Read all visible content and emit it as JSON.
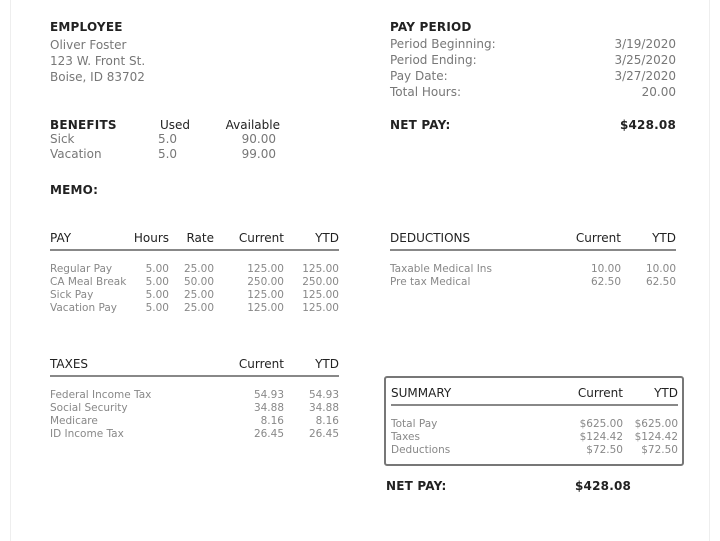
{
  "employee": {
    "title": "EMPLOYEE",
    "name": "Oliver Foster",
    "address1": "123 W. Front St.",
    "address2": "Boise, ID 83702"
  },
  "pay_period": {
    "title": "PAY PERIOD",
    "rows": [
      {
        "label": "Period Beginning:",
        "value": "3/19/2020"
      },
      {
        "label": "Period Ending:",
        "value": "3/25/2020"
      },
      {
        "label": "Pay Date:",
        "value": "3/27/2020"
      },
      {
        "label": "Total Hours:",
        "value": "20.00"
      }
    ]
  },
  "benefits": {
    "headers": [
      "BENEFITS",
      "Used",
      "Available"
    ],
    "rows": [
      [
        "Sick",
        "5.0",
        "90.00"
      ],
      [
        "Vacation",
        "5.0",
        "99.00"
      ]
    ]
  },
  "net_pay_top": {
    "label": "NET PAY:",
    "value": "$428.08"
  },
  "memo": {
    "label": "MEMO:"
  },
  "pay": {
    "headers": [
      "PAY",
      "Hours",
      "Rate",
      "Current",
      "YTD"
    ],
    "rows": [
      [
        "Regular Pay",
        "5.00",
        "25.00",
        "125.00",
        "125.00"
      ],
      [
        "CA Meal Break",
        "5.00",
        "50.00",
        "250.00",
        "250.00"
      ],
      [
        "Sick Pay",
        "5.00",
        "25.00",
        "125.00",
        "125.00"
      ],
      [
        "Vacation Pay",
        "5.00",
        "25.00",
        "125.00",
        "125.00"
      ]
    ]
  },
  "deductions": {
    "headers": [
      "DEDUCTIONS",
      "Current",
      "YTD"
    ],
    "rows": [
      [
        "Taxable Medical Ins",
        "10.00",
        "10.00"
      ],
      [
        "Pre tax Medical",
        "62.50",
        "62.50"
      ]
    ]
  },
  "taxes": {
    "headers": [
      "TAXES",
      "Current",
      "YTD"
    ],
    "rows": [
      [
        "Federal Income Tax",
        "54.93",
        "54.93"
      ],
      [
        "Social Security",
        "34.88",
        "34.88"
      ],
      [
        "Medicare",
        "8.16",
        "8.16"
      ],
      [
        "ID Income Tax",
        "26.45",
        "26.45"
      ]
    ]
  },
  "summary": {
    "headers": [
      "SUMMARY",
      "Current",
      "YTD"
    ],
    "rows": [
      [
        "Total Pay",
        "$625.00",
        "$625.00"
      ],
      [
        "Taxes",
        "$124.42",
        "$124.42"
      ],
      [
        "Deductions",
        "$72.50",
        "$72.50"
      ]
    ]
  },
  "net_pay_bottom": {
    "label": "NET PAY:",
    "value": "$428.08"
  }
}
